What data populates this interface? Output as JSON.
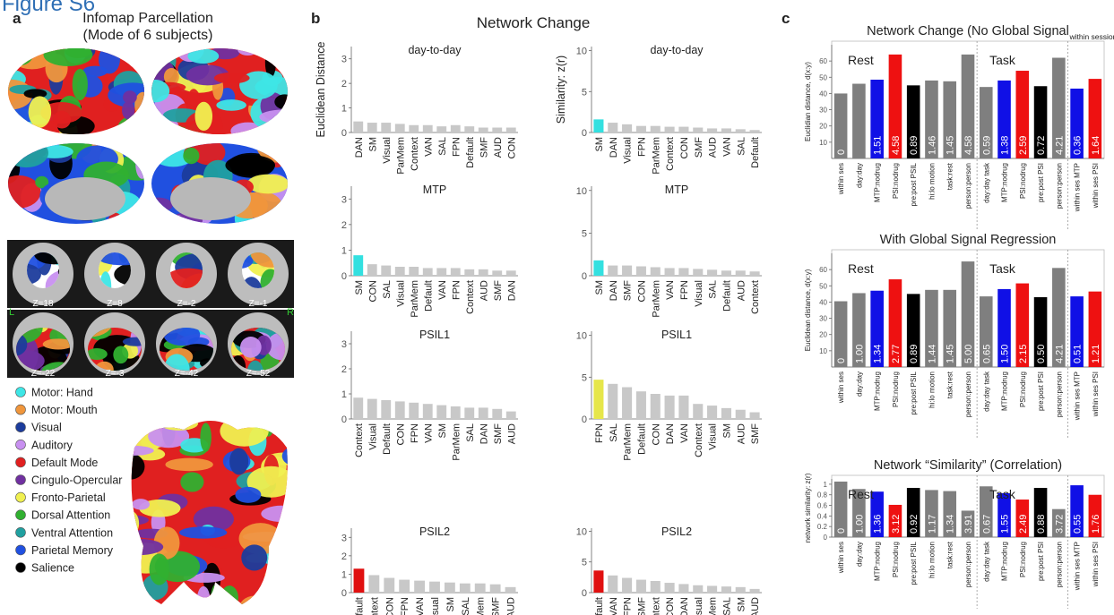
{
  "figure_label": "Figure S6",
  "panel_a": {
    "letter": "a",
    "title": [
      "Infomap Parcellation",
      "(Mode of 6 subjects)"
    ],
    "slice_labels": [
      "Z=18",
      "Z=8",
      "Z=-2",
      "Z=-1",
      "Z=-22",
      "Z=-3",
      "Z=-42",
      "Z=-52"
    ],
    "hemisphere_labels": [
      "L",
      "R"
    ],
    "legend": [
      {
        "name": "Motor: Hand",
        "color": "#3ee6e6"
      },
      {
        "name": "Motor: Mouth",
        "color": "#f0963c"
      },
      {
        "name": "Visual",
        "color": "#1c3c9c"
      },
      {
        "name": "Auditory",
        "color": "#c890f0"
      },
      {
        "name": "Default Mode",
        "color": "#e02020"
      },
      {
        "name": "Cingulo-Opercular",
        "color": "#7030a0"
      },
      {
        "name": "Fronto-Parietal",
        "color": "#f0f050"
      },
      {
        "name": "Dorsal Attention",
        "color": "#30b030"
      },
      {
        "name": "Ventral Attention",
        "color": "#20a0a0"
      },
      {
        "name": "Parietal Memory",
        "color": "#2050e0"
      },
      {
        "name": "Salience",
        "color": "#000000"
      }
    ]
  },
  "panel_b": {
    "letter": "b",
    "title": "Network Change"
  },
  "panel_c": {
    "letter": "c"
  },
  "chart_data": [
    {
      "type": "bar",
      "title": "day-to-day",
      "ylabel": "Euclidean Distance",
      "categories": [
        "DAN",
        "SM",
        "Visual",
        "ParMem",
        "Context",
        "VAN",
        "SAL",
        "FPN",
        "Default",
        "SMF",
        "AUD",
        "CON"
      ],
      "values": [
        0.45,
        0.4,
        0.4,
        0.35,
        0.3,
        0.3,
        0.25,
        0.3,
        0.25,
        0.2,
        0.2,
        0.2
      ],
      "colors": [
        "#c8c8c8",
        "#c8c8c8",
        "#c8c8c8",
        "#c8c8c8",
        "#c8c8c8",
        "#c8c8c8",
        "#c8c8c8",
        "#c8c8c8",
        "#c8c8c8",
        "#c8c8c8",
        "#c8c8c8",
        "#c8c8c8"
      ],
      "ylim": [
        0,
        3.5
      ],
      "yticks": [
        0,
        1,
        2,
        3
      ]
    },
    {
      "type": "bar",
      "title": "day-to-day",
      "ylabel": "Similarity: z(r)",
      "categories": [
        "SM",
        "DAN",
        "Visual",
        "FPN",
        "ParMem",
        "Context",
        "CON",
        "SMF",
        "AUD",
        "VAN",
        "SAL",
        "Default"
      ],
      "values": [
        1.6,
        1.2,
        1.0,
        0.8,
        0.8,
        0.7,
        0.7,
        0.6,
        0.5,
        0.5,
        0.4,
        0.3
      ],
      "colors": [
        "#33e0e0",
        "#c8c8c8",
        "#c8c8c8",
        "#c8c8c8",
        "#c8c8c8",
        "#c8c8c8",
        "#c8c8c8",
        "#c8c8c8",
        "#c8c8c8",
        "#c8c8c8",
        "#c8c8c8",
        "#c8c8c8"
      ],
      "ylim": [
        0,
        10.5
      ],
      "yticks": [
        0,
        5,
        10
      ]
    },
    {
      "type": "bar",
      "title": "MTP",
      "categories": [
        "SM",
        "CON",
        "SAL",
        "Visual",
        "ParMem",
        "Default",
        "VAN",
        "FPN",
        "Context",
        "AUD",
        "SMF",
        "DAN"
      ],
      "values": [
        0.8,
        0.45,
        0.4,
        0.35,
        0.35,
        0.3,
        0.3,
        0.3,
        0.25,
        0.25,
        0.2,
        0.2
      ],
      "colors": [
        "#33e0e0",
        "#c8c8c8",
        "#c8c8c8",
        "#c8c8c8",
        "#c8c8c8",
        "#c8c8c8",
        "#c8c8c8",
        "#c8c8c8",
        "#c8c8c8",
        "#c8c8c8",
        "#c8c8c8",
        "#c8c8c8"
      ],
      "ylim": [
        0,
        3.5
      ],
      "yticks": [
        0,
        1,
        2,
        3
      ]
    },
    {
      "type": "bar",
      "title": "MTP",
      "categories": [
        "SM",
        "DAN",
        "SMF",
        "CON",
        "ParMem",
        "VAN",
        "FPN",
        "Visual",
        "SAL",
        "Default",
        "AUD",
        "Context"
      ],
      "values": [
        1.8,
        1.2,
        1.2,
        1.1,
        1.0,
        0.9,
        0.9,
        0.8,
        0.7,
        0.6,
        0.6,
        0.5
      ],
      "colors": [
        "#33e0e0",
        "#c8c8c8",
        "#c8c8c8",
        "#c8c8c8",
        "#c8c8c8",
        "#c8c8c8",
        "#c8c8c8",
        "#c8c8c8",
        "#c8c8c8",
        "#c8c8c8",
        "#c8c8c8",
        "#c8c8c8"
      ],
      "ylim": [
        0,
        10.5
      ],
      "yticks": [
        0,
        5,
        10
      ]
    },
    {
      "type": "bar",
      "title": "PSIL1",
      "categories": [
        "Context",
        "Visual",
        "Default",
        "CON",
        "FPN",
        "VAN",
        "SM",
        "ParMem",
        "SAL",
        "DAN",
        "SMF",
        "AUD"
      ],
      "values": [
        0.85,
        0.8,
        0.75,
        0.7,
        0.65,
        0.6,
        0.55,
        0.5,
        0.45,
        0.45,
        0.4,
        0.3
      ],
      "colors": [
        "#c8c8c8",
        "#c8c8c8",
        "#c8c8c8",
        "#c8c8c8",
        "#c8c8c8",
        "#c8c8c8",
        "#c8c8c8",
        "#c8c8c8",
        "#c8c8c8",
        "#c8c8c8",
        "#c8c8c8",
        "#c8c8c8"
      ],
      "ylim": [
        0,
        3.5
      ],
      "yticks": [
        0,
        1,
        2,
        3
      ]
    },
    {
      "type": "bar",
      "title": "PSIL1",
      "categories": [
        "FPN",
        "SAL",
        "ParMem",
        "Default",
        "CON",
        "DAN",
        "VAN",
        "Context",
        "Visual",
        "SM",
        "AUD",
        "SMF"
      ],
      "values": [
        4.7,
        4.2,
        3.8,
        3.3,
        3.0,
        2.8,
        2.8,
        1.8,
        1.6,
        1.3,
        1.1,
        0.8
      ],
      "colors": [
        "#e6e64a",
        "#c8c8c8",
        "#c8c8c8",
        "#c8c8c8",
        "#c8c8c8",
        "#c8c8c8",
        "#c8c8c8",
        "#c8c8c8",
        "#c8c8c8",
        "#c8c8c8",
        "#c8c8c8",
        "#c8c8c8"
      ],
      "ylim": [
        0,
        10.5
      ],
      "yticks": [
        0,
        5,
        10
      ]
    },
    {
      "type": "bar",
      "title": "PSIL2",
      "categories": [
        "Default",
        "Context",
        "CON",
        "FPN",
        "VAN",
        "Visual",
        "SM",
        "SAL",
        "ParMem",
        "SMF",
        "AUD"
      ],
      "values": [
        1.3,
        0.95,
        0.8,
        0.7,
        0.65,
        0.6,
        0.55,
        0.5,
        0.5,
        0.45,
        0.3
      ],
      "colors": [
        "#e01010",
        "#c8c8c8",
        "#c8c8c8",
        "#c8c8c8",
        "#c8c8c8",
        "#c8c8c8",
        "#c8c8c8",
        "#c8c8c8",
        "#c8c8c8",
        "#c8c8c8",
        "#c8c8c8"
      ],
      "ylim": [
        0,
        3.5
      ],
      "yticks": [
        0,
        1,
        2,
        3
      ]
    },
    {
      "type": "bar",
      "title": "PSIL2",
      "categories": [
        "Default",
        "VAN",
        "FPN",
        "SMF",
        "Context",
        "CON",
        "DAN",
        "Visual",
        "ParMem",
        "SAL",
        "SM",
        "AUD"
      ],
      "values": [
        3.6,
        2.8,
        2.4,
        2.1,
        1.9,
        1.6,
        1.4,
        1.2,
        1.1,
        1.0,
        0.9,
        0.6
      ],
      "colors": [
        "#e01010",
        "#c8c8c8",
        "#c8c8c8",
        "#c8c8c8",
        "#c8c8c8",
        "#c8c8c8",
        "#c8c8c8",
        "#c8c8c8",
        "#c8c8c8",
        "#c8c8c8",
        "#c8c8c8",
        "#c8c8c8"
      ],
      "ylim": [
        0,
        10.5
      ],
      "yticks": [
        0,
        5,
        10
      ]
    },
    {
      "type": "bar",
      "title": "Network Change (No Global Signal",
      "ylabel": "Euclidian distance, d(x:y)",
      "annotations": [
        "Rest",
        "Task",
        "within session"
      ],
      "categories": [
        "within ses",
        "day:day",
        "MTP:nodrug",
        "PSI:nodrug",
        "pre:post PSIL",
        "hi:lo motion",
        "task:rest",
        "person:person",
        "day:day task",
        "MTP:nodrug",
        "PSI:nodrug",
        "pre:post PSI",
        "person:person",
        "within ses MTP",
        "within ses PSI"
      ],
      "values": [
        40,
        46,
        48.5,
        64,
        45,
        48,
        47.5,
        64,
        44,
        48,
        54,
        44.5,
        62,
        43,
        49
      ],
      "inner_labels": [
        "0",
        null,
        "1.51",
        "4.58",
        "0.89",
        "1.46",
        "1.45",
        "4.58",
        "0.59",
        "1.38",
        "2.59",
        "0.72",
        "4.21",
        "0.36",
        "1.64"
      ],
      "colors": [
        "#7f7f7f",
        "#7f7f7f",
        "#1010e6",
        "#ee1111",
        "#000000",
        "#7f7f7f",
        "#7f7f7f",
        "#7f7f7f",
        "#7f7f7f",
        "#1010e6",
        "#ee1111",
        "#000000",
        "#7f7f7f",
        "#1010e6",
        "#ee1111"
      ],
      "ylim": [
        0,
        70
      ],
      "yticks": [
        10,
        20,
        30,
        40,
        50,
        60
      ]
    },
    {
      "type": "bar",
      "title": "With Global Signal Regression",
      "ylabel": "Euclidean distance, d(x:y)",
      "annotations": [
        "Rest",
        "Task"
      ],
      "categories": [
        "within ses",
        "day:day",
        "MTP:nodrug",
        "PSI:nodrug",
        "pre:post PSIL",
        "hi:lo motion",
        "task:rest",
        "person:person",
        "day:day task",
        "MTP:nodrug",
        "PSI:nodrug",
        "pre:post PSI",
        "person:person",
        "within ses MTP",
        "within ses PSI"
      ],
      "values": [
        40.5,
        45.5,
        47,
        54,
        45,
        47.5,
        47.5,
        65,
        43.5,
        48,
        51.5,
        43,
        61,
        43.5,
        46.5
      ],
      "inner_labels": [
        "0",
        "1.00",
        "1.34",
        "2.77",
        "0.89",
        "1.44",
        "1.45",
        "5.00",
        "0.65",
        "1.50",
        "2.15",
        "0.50",
        "4.21",
        "0.51",
        "1.21"
      ],
      "colors": [
        "#7f7f7f",
        "#7f7f7f",
        "#1010e6",
        "#ee1111",
        "#000000",
        "#7f7f7f",
        "#7f7f7f",
        "#7f7f7f",
        "#7f7f7f",
        "#1010e6",
        "#ee1111",
        "#000000",
        "#7f7f7f",
        "#1010e6",
        "#ee1111"
      ],
      "ylim": [
        0,
        70
      ],
      "yticks": [
        10,
        20,
        30,
        40,
        50,
        60
      ]
    },
    {
      "type": "bar",
      "title": "Network “Similarity” (Correlation)",
      "ylabel": "network similarity: z(r)",
      "annotations": [
        "Rest",
        "Task"
      ],
      "categories": [
        "within ses",
        "day:day",
        "MTP:nodrug",
        "PSI:nodrug",
        "pre:post PSIL",
        "hi:lo motion",
        "task:rest",
        "person:person",
        "day:day task",
        "MTP:nodrug",
        "PSI:nodrug",
        "pre:post PSI",
        "person:person",
        "within ses MTP",
        "within ses PSI"
      ],
      "values": [
        1.05,
        0.91,
        0.86,
        0.61,
        0.93,
        0.89,
        0.87,
        0.5,
        0.96,
        0.83,
        0.71,
        0.93,
        0.53,
        0.98,
        0.8
      ],
      "inner_labels": [
        "0",
        "1.00",
        "1.36",
        "3.12",
        "0.92",
        "1.17",
        "1.34",
        "3.91",
        "0.67",
        "1.55",
        "2.49",
        "0.88",
        "3.72",
        "0.55",
        "1.76"
      ],
      "colors": [
        "#7f7f7f",
        "#7f7f7f",
        "#1010e6",
        "#ee1111",
        "#000000",
        "#7f7f7f",
        "#7f7f7f",
        "#7f7f7f",
        "#7f7f7f",
        "#1010e6",
        "#ee1111",
        "#000000",
        "#7f7f7f",
        "#1010e6",
        "#ee1111"
      ],
      "ylim": [
        0,
        1.1
      ],
      "yticks": [
        0,
        0.2,
        0.4,
        0.6,
        0.8,
        1
      ]
    }
  ]
}
